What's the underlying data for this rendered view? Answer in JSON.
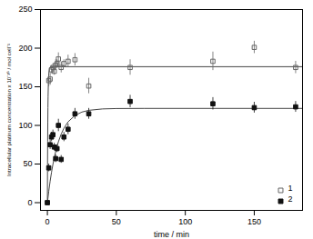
{
  "chart_data": {
    "type": "scatter",
    "xlabel": "time / min",
    "ylabel": "Intracellular platinum concentration x 10⁻¹⁶ / mol cell⁻¹",
    "xlim": [
      -5,
      185
    ],
    "ylim": [
      -10,
      250
    ],
    "xticks": [
      0,
      50,
      100,
      150
    ],
    "yticks": [
      0,
      50,
      100,
      150,
      200,
      250
    ],
    "grid": false,
    "legend": "lower right",
    "series": [
      {
        "type": "line",
        "color": "#444444",
        "x": [
          0,
          0.1,
          0.2,
          0.3,
          0.4,
          0.5,
          0.75,
          1,
          1.5,
          2,
          3,
          185
        ],
        "values": [
          0,
          45.62,
          79.41,
          104.6,
          122.99,
          136.73,
          157.45,
          167.24,
          174.04,
          175.56,
          175.98,
          176
        ]
      },
      {
        "type": "line",
        "color": "#444444",
        "x": [
          0,
          1,
          2,
          3,
          4,
          5,
          6,
          8,
          10,
          12,
          15,
          20,
          25,
          30,
          40,
          50,
          70,
          185
        ],
        "values": [
          0,
          14.87,
          27.93,
          39.4,
          49.47,
          58.31,
          66.07,
          78.88,
          88.75,
          96.36,
          104.64,
          112.94,
          117.27,
          119.53,
          121.33,
          121.82,
          121.99,
          122
        ]
      },
      {
        "name": "1",
        "type": "scatter",
        "marker": "open_square",
        "color": "#666666",
        "x": [
          0,
          1,
          2,
          3,
          4,
          5,
          6,
          7,
          8,
          10,
          12,
          15,
          20,
          30,
          60,
          120,
          150,
          180
        ],
        "values": [
          0,
          158,
          160,
          172,
          175,
          170,
          178,
          180,
          186,
          175,
          180,
          183,
          185,
          151,
          175,
          183,
          201,
          175
        ],
        "yerr": [
          0,
          8,
          8,
          5,
          5,
          5,
          7,
          5,
          8,
          7,
          5,
          8,
          8,
          10,
          10,
          12,
          8,
          8
        ]
      },
      {
        "name": "2",
        "type": "scatter",
        "marker": "square",
        "color": "#111111",
        "x": [
          0,
          1,
          2,
          3,
          4,
          5,
          6,
          7,
          8,
          10,
          12,
          15,
          20,
          30,
          60,
          120,
          150,
          180
        ],
        "values": [
          0,
          45,
          75,
          85,
          88,
          72,
          57,
          70,
          100,
          56,
          85,
          95,
          115,
          115,
          131,
          128,
          123,
          124
        ],
        "yerr": [
          0,
          5,
          6,
          6,
          6,
          5,
          5,
          5,
          8,
          5,
          6,
          7,
          7,
          7,
          8,
          8,
          7,
          7
        ]
      }
    ]
  }
}
